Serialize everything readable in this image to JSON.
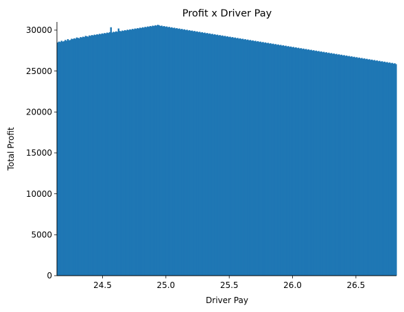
{
  "chart_data": {
    "type": "bar",
    "title": "Profit x Driver Pay",
    "xlabel": "Driver Pay",
    "ylabel": "Total Profit",
    "xlim": [
      24.14,
      26.82
    ],
    "ylim": [
      0,
      31000
    ],
    "xticks": [
      24.5,
      25.0,
      25.5,
      26.0,
      26.5
    ],
    "xtick_labels": [
      "24.5",
      "25.0",
      "25.5",
      "26.0",
      "26.5"
    ],
    "yticks": [
      0,
      5000,
      10000,
      15000,
      20000,
      25000,
      30000
    ],
    "ytick_labels": [
      "0",
      "5000",
      "10000",
      "15000",
      "20000",
      "25000",
      "30000"
    ],
    "grid": false,
    "bar_color": "#1f77b4",
    "bin_edges_start": 24.14,
    "bin_width": 0.01,
    "values": [
      28500,
      28600,
      28550,
      28700,
      28600,
      28650,
      28800,
      28700,
      28900,
      28750,
      28800,
      28950,
      28900,
      29000,
      28950,
      29100,
      29050,
      29000,
      29150,
      29100,
      29200,
      29150,
      29300,
      29250,
      29200,
      29350,
      29300,
      29400,
      29350,
      29450,
      29400,
      29500,
      29450,
      29550,
      29500,
      29600,
      29550,
      29650,
      29600,
      29700,
      29650,
      29750,
      30350,
      29700,
      29800,
      29750,
      29850,
      29800,
      30200,
      29900,
      29850,
      29950,
      29900,
      30000,
      29950,
      30050,
      30000,
      30100,
      30050,
      30150,
      30100,
      30200,
      30150,
      30250,
      30200,
      30300,
      30250,
      30350,
      30300,
      30400,
      30350,
      30450,
      30400,
      30500,
      30450,
      30550,
      30500,
      30600,
      30550,
      30650,
      30600,
      30500,
      30550,
      30450,
      30500,
      30400,
      30450,
      30350,
      30400,
      30300,
      30350,
      30250,
      30300,
      30200,
      30250,
      30150,
      30200,
      30100,
      30150,
      30050,
      30100,
      30000,
      30050,
      29950,
      30000,
      29900,
      29950,
      29850,
      29900,
      29800,
      29850,
      29750,
      29800,
      29700,
      29750,
      29650,
      29700,
      29600,
      29650,
      29550,
      29600,
      29500,
      29550,
      29450,
      29500,
      29400,
      29450,
      29350,
      29400,
      29300,
      29350,
      29250,
      29300,
      29200,
      29250,
      29150,
      29200,
      29100,
      29150,
      29050,
      29100,
      29000,
      29050,
      28950,
      29000,
      28900,
      28950,
      28850,
      28900,
      28800,
      28850,
      28750,
      28800,
      28700,
      28750,
      28650,
      28700,
      28600,
      28650,
      28550,
      28600,
      28500,
      28550,
      28450,
      28500,
      28400,
      28450,
      28350,
      28400,
      28300,
      28350,
      28250,
      28300,
      28200,
      28250,
      28150,
      28200,
      28100,
      28150,
      28050,
      28100,
      28000,
      28050,
      27950,
      28000,
      27900,
      27950,
      27850,
      27900,
      27800,
      27850,
      27750,
      27800,
      27700,
      27750,
      27650,
      27700,
      27600,
      27650,
      27550,
      27600,
      27500,
      27550,
      27450,
      27500,
      27400,
      27450,
      27350,
      27400,
      27300,
      27350,
      27250,
      27300,
      27200,
      27250,
      27150,
      27200,
      27100,
      27150,
      27050,
      27100,
      27000,
      27050,
      26950,
      27000,
      26900,
      26950,
      26850,
      26900,
      26800,
      26850,
      26750,
      26800,
      26700,
      26750,
      26650,
      26700,
      26600,
      26650,
      26550,
      26600,
      26500,
      26550,
      26450,
      26500,
      26400,
      26450,
      26350,
      26400,
      26300,
      26350,
      26250,
      26300,
      26200,
      26250,
      26150,
      26200,
      26100,
      26150,
      26050,
      26100,
      26000,
      26050,
      25950,
      26000,
      25900,
      25950,
      25850,
      25900,
      25800,
      25850,
      25750,
      25800,
      25700,
      25750,
      25650,
      25700,
      25600,
      25650,
      25550,
      25600,
      25500
    ]
  }
}
